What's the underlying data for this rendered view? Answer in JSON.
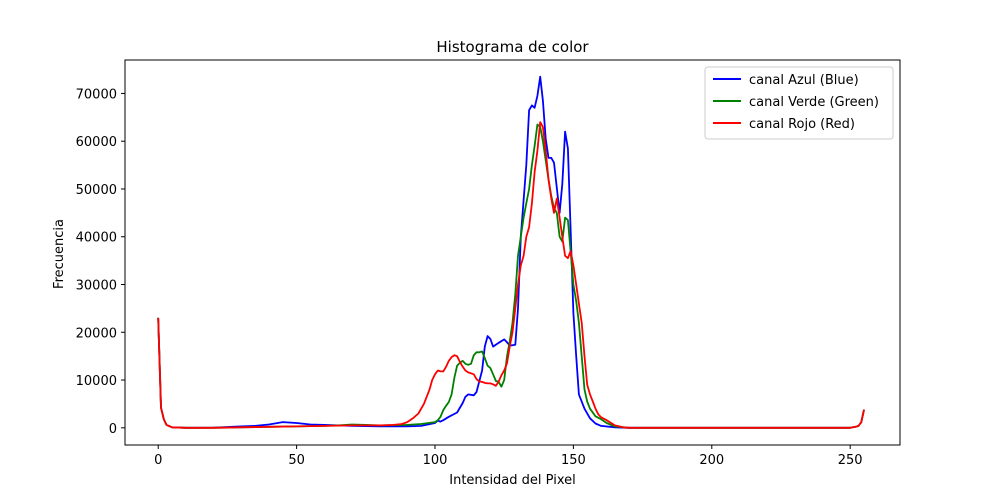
{
  "chart_data": {
    "type": "line",
    "title": "Histograma de color",
    "xlabel": "Intensidad del Pixel",
    "ylabel": "Frecuencia",
    "xlim": [
      -12,
      268
    ],
    "ylim": [
      -3600,
      77000
    ],
    "xticks": [
      0,
      50,
      100,
      150,
      200,
      250
    ],
    "yticks": [
      0,
      10000,
      20000,
      30000,
      40000,
      50000,
      60000,
      70000
    ],
    "grid": false,
    "legend_position": "top-right",
    "series": [
      {
        "name": "canal Azul (Blue)",
        "color": "#0000ff",
        "points": [
          [
            0,
            23000
          ],
          [
            1,
            4200
          ],
          [
            2,
            1800
          ],
          [
            3,
            600
          ],
          [
            5,
            100
          ],
          [
            10,
            0
          ],
          [
            20,
            50
          ],
          [
            30,
            300
          ],
          [
            35,
            400
          ],
          [
            40,
            700
          ],
          [
            45,
            1200
          ],
          [
            50,
            1000
          ],
          [
            55,
            700
          ],
          [
            60,
            600
          ],
          [
            65,
            500
          ],
          [
            70,
            400
          ],
          [
            80,
            300
          ],
          [
            90,
            300
          ],
          [
            95,
            400
          ],
          [
            100,
            1000
          ],
          [
            101,
            1500
          ],
          [
            102,
            1300
          ],
          [
            103,
            1600
          ],
          [
            105,
            2300
          ],
          [
            108,
            3200
          ],
          [
            110,
            5200
          ],
          [
            111,
            6500
          ],
          [
            112,
            7000
          ],
          [
            114,
            6800
          ],
          [
            115,
            7500
          ],
          [
            117,
            12000
          ],
          [
            118,
            17000
          ],
          [
            119,
            19200
          ],
          [
            120,
            18600
          ],
          [
            121,
            17000
          ],
          [
            123,
            17800
          ],
          [
            125,
            18500
          ],
          [
            126,
            17900
          ],
          [
            127,
            17200
          ],
          [
            128,
            17300
          ],
          [
            129,
            17400
          ],
          [
            130,
            25000
          ],
          [
            131,
            40000
          ],
          [
            133,
            55000
          ],
          [
            134,
            66500
          ],
          [
            135,
            67500
          ],
          [
            136,
            67000
          ],
          [
            137,
            69500
          ],
          [
            138,
            73500
          ],
          [
            139,
            68500
          ],
          [
            140,
            60500
          ],
          [
            141,
            56500
          ],
          [
            142,
            56500
          ],
          [
            143,
            55500
          ],
          [
            145,
            45000
          ],
          [
            146,
            51000
          ],
          [
            147,
            62000
          ],
          [
            148,
            58500
          ],
          [
            150,
            24000
          ],
          [
            151,
            15000
          ],
          [
            152,
            7000
          ],
          [
            154,
            4000
          ],
          [
            156,
            2000
          ],
          [
            158,
            900
          ],
          [
            160,
            400
          ],
          [
            165,
            100
          ],
          [
            170,
            0
          ],
          [
            200,
            0
          ],
          [
            250,
            0
          ],
          [
            252,
            200
          ],
          [
            253,
            400
          ],
          [
            254,
            1200
          ],
          [
            255,
            3800
          ]
        ]
      },
      {
        "name": "canal Verde (Green)",
        "color": "#008000",
        "points": [
          [
            0,
            23000
          ],
          [
            1,
            4200
          ],
          [
            2,
            1800
          ],
          [
            3,
            600
          ],
          [
            5,
            100
          ],
          [
            10,
            0
          ],
          [
            20,
            0
          ],
          [
            30,
            100
          ],
          [
            40,
            200
          ],
          [
            50,
            300
          ],
          [
            60,
            400
          ],
          [
            65,
            500
          ],
          [
            70,
            700
          ],
          [
            75,
            600
          ],
          [
            80,
            500
          ],
          [
            90,
            600
          ],
          [
            95,
            800
          ],
          [
            100,
            1200
          ],
          [
            101,
            1600
          ],
          [
            102,
            2300
          ],
          [
            103,
            3700
          ],
          [
            104,
            4600
          ],
          [
            105,
            5400
          ],
          [
            106,
            7000
          ],
          [
            107,
            10500
          ],
          [
            108,
            13000
          ],
          [
            109,
            13600
          ],
          [
            110,
            14000
          ],
          [
            111,
            13400
          ],
          [
            112,
            13200
          ],
          [
            113,
            13400
          ],
          [
            114,
            15200
          ],
          [
            115,
            15800
          ],
          [
            116,
            15800
          ],
          [
            117,
            16000
          ],
          [
            118,
            14600
          ],
          [
            119,
            13000
          ],
          [
            120,
            12500
          ],
          [
            121,
            11200
          ],
          [
            122,
            9800
          ],
          [
            123,
            9600
          ],
          [
            124,
            8600
          ],
          [
            125,
            10000
          ],
          [
            126,
            15000
          ],
          [
            127,
            18000
          ],
          [
            128,
            22000
          ],
          [
            129,
            28000
          ],
          [
            130,
            36000
          ],
          [
            131,
            40000
          ],
          [
            132,
            44000
          ],
          [
            133,
            47000
          ],
          [
            134,
            50000
          ],
          [
            135,
            55000
          ],
          [
            136,
            59000
          ],
          [
            137,
            63500
          ],
          [
            138,
            63000
          ],
          [
            139,
            60000
          ],
          [
            140,
            56000
          ],
          [
            141,
            52000
          ],
          [
            142,
            48500
          ],
          [
            143,
            46000
          ],
          [
            144,
            45000
          ],
          [
            145,
            40000
          ],
          [
            146,
            39000
          ],
          [
            147,
            44000
          ],
          [
            148,
            43500
          ],
          [
            149,
            37000
          ],
          [
            150,
            30000
          ],
          [
            151,
            26500
          ],
          [
            152,
            22000
          ],
          [
            153,
            15000
          ],
          [
            154,
            8000
          ],
          [
            155,
            5500
          ],
          [
            156,
            4000
          ],
          [
            158,
            2400
          ],
          [
            160,
            1800
          ],
          [
            162,
            1000
          ],
          [
            165,
            300
          ],
          [
            170,
            0
          ],
          [
            200,
            0
          ],
          [
            250,
            0
          ],
          [
            252,
            200
          ],
          [
            253,
            400
          ],
          [
            254,
            1200
          ],
          [
            255,
            3800
          ]
        ]
      },
      {
        "name": "canal Rojo (Red)",
        "color": "#ff0000",
        "points": [
          [
            0,
            23000
          ],
          [
            1,
            4200
          ],
          [
            2,
            1800
          ],
          [
            3,
            600
          ],
          [
            5,
            100
          ],
          [
            10,
            0
          ],
          [
            20,
            0
          ],
          [
            30,
            100
          ],
          [
            40,
            200
          ],
          [
            50,
            300
          ],
          [
            60,
            400
          ],
          [
            70,
            500
          ],
          [
            80,
            500
          ],
          [
            85,
            600
          ],
          [
            88,
            800
          ],
          [
            90,
            1200
          ],
          [
            92,
            2000
          ],
          [
            94,
            3000
          ],
          [
            96,
            5000
          ],
          [
            98,
            8000
          ],
          [
            99,
            10000
          ],
          [
            100,
            11200
          ],
          [
            101,
            12000
          ],
          [
            102,
            11800
          ],
          [
            103,
            11800
          ],
          [
            104,
            12800
          ],
          [
            105,
            14000
          ],
          [
            106,
            14800
          ],
          [
            107,
            15200
          ],
          [
            108,
            15000
          ],
          [
            109,
            13800
          ],
          [
            110,
            12800
          ],
          [
            111,
            12000
          ],
          [
            112,
            11600
          ],
          [
            113,
            11400
          ],
          [
            114,
            11200
          ],
          [
            115,
            10200
          ],
          [
            116,
            9700
          ],
          [
            117,
            9600
          ],
          [
            118,
            9400
          ],
          [
            119,
            9300
          ],
          [
            120,
            9300
          ],
          [
            121,
            9100
          ],
          [
            122,
            8800
          ],
          [
            123,
            9700
          ],
          [
            124,
            11000
          ],
          [
            125,
            12000
          ],
          [
            126,
            13500
          ],
          [
            127,
            17000
          ],
          [
            128,
            20000
          ],
          [
            129,
            25000
          ],
          [
            130,
            30000
          ],
          [
            131,
            34000
          ],
          [
            132,
            36000
          ],
          [
            133,
            40000
          ],
          [
            134,
            42000
          ],
          [
            135,
            47000
          ],
          [
            136,
            53500
          ],
          [
            137,
            58000
          ],
          [
            138,
            64000
          ],
          [
            139,
            63000
          ],
          [
            140,
            58000
          ],
          [
            141,
            52000
          ],
          [
            142,
            48000
          ],
          [
            143,
            45000
          ],
          [
            144,
            48000
          ],
          [
            145,
            44000
          ],
          [
            146,
            40000
          ],
          [
            147,
            36000
          ],
          [
            148,
            35500
          ],
          [
            149,
            37000
          ],
          [
            150,
            34000
          ],
          [
            151,
            30000
          ],
          [
            152,
            26000
          ],
          [
            153,
            22000
          ],
          [
            154,
            15000
          ],
          [
            155,
            9000
          ],
          [
            156,
            7000
          ],
          [
            157,
            5500
          ],
          [
            158,
            4000
          ],
          [
            159,
            2800
          ],
          [
            160,
            2200
          ],
          [
            162,
            1600
          ],
          [
            165,
            500
          ],
          [
            168,
            100
          ],
          [
            170,
            0
          ],
          [
            200,
            0
          ],
          [
            250,
            0
          ],
          [
            252,
            200
          ],
          [
            253,
            400
          ],
          [
            254,
            1200
          ],
          [
            255,
            3800
          ]
        ]
      }
    ]
  }
}
